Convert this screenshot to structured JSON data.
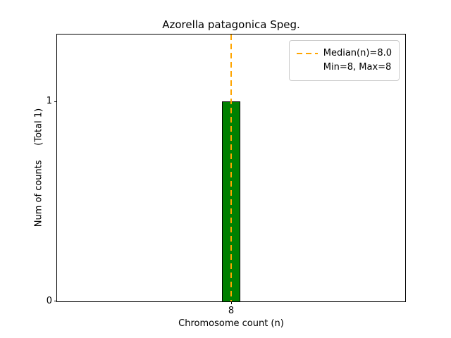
{
  "chart_data": {
    "type": "bar",
    "title": "Azorella patagonica Speg.",
    "xlabel": "Chromosome count (n)",
    "ylabel": "Num of counts     (Total 1)",
    "categories": [
      "8"
    ],
    "values": [
      1
    ],
    "ylim": [
      0,
      1.333
    ],
    "yticks": [
      0,
      1
    ],
    "ytick_labels": [
      "0",
      "1"
    ],
    "xtick_labels": [
      "8"
    ],
    "grid": false,
    "annotations": [
      {
        "type": "vline",
        "x": 8,
        "style": "dashed"
      }
    ],
    "legend": {
      "position": "upper right",
      "entries": [
        {
          "label": "Median(n)=8.0",
          "handle": "dashed-orange-line"
        },
        {
          "label": "Min=8, Max=8",
          "handle": "none"
        }
      ]
    },
    "colors": {
      "bar": "#008000",
      "bar_edge": "#000000",
      "median_line": "#FFA500",
      "axis": "#000000",
      "legend_border": "#cccccc"
    }
  }
}
